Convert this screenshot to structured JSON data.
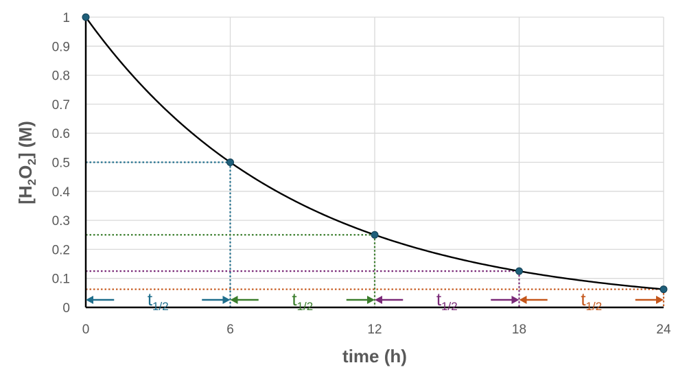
{
  "chart_data": {
    "type": "line",
    "xlabel": "time (h)",
    "ylabel": {
      "open": "[H",
      "sub1": "2",
      "mid": "O",
      "sub2": "2",
      "close": "] (M)"
    },
    "xlim": [
      0,
      24
    ],
    "ylim": [
      0,
      1
    ],
    "x_ticks": [
      "0",
      "6",
      "12",
      "18",
      "24"
    ],
    "x_tick_values": [
      0,
      6,
      12,
      18,
      24
    ],
    "y_ticks": [
      "0",
      "0.1",
      "0.2",
      "0.3",
      "0.4",
      "0.5",
      "0.6",
      "0.7",
      "0.8",
      "0.9",
      "1"
    ],
    "y_tick_values": [
      0,
      0.1,
      0.2,
      0.3,
      0.4,
      0.5,
      0.6,
      0.7,
      0.8,
      0.9,
      1
    ],
    "grid": true,
    "curve": {
      "model": "exponential decay",
      "initial_value": 1,
      "half_life": 6,
      "color": "#000000"
    },
    "points": {
      "x": [
        0,
        6,
        12,
        18,
        24
      ],
      "y": [
        1,
        0.5,
        0.25,
        0.125,
        0.0625
      ],
      "color": "#1f5f7a"
    },
    "half_lives": [
      {
        "start": 0,
        "end": 6,
        "level": 0.5,
        "label": "t",
        "sub": "1/2",
        "color": "#1f6e8c"
      },
      {
        "start": 6,
        "end": 12,
        "level": 0.25,
        "label": "t",
        "sub": "1/2",
        "color": "#3a7d2c"
      },
      {
        "start": 12,
        "end": 18,
        "level": 0.125,
        "label": "t",
        "sub": "1/2",
        "color": "#7a2a78"
      },
      {
        "start": 18,
        "end": 24,
        "level": 0.0625,
        "label": "t",
        "sub": "1/2",
        "color": "#c4561a"
      }
    ],
    "colors": {
      "grid": "#d9d9d9",
      "axis": "#000000",
      "text": "#595959"
    }
  }
}
